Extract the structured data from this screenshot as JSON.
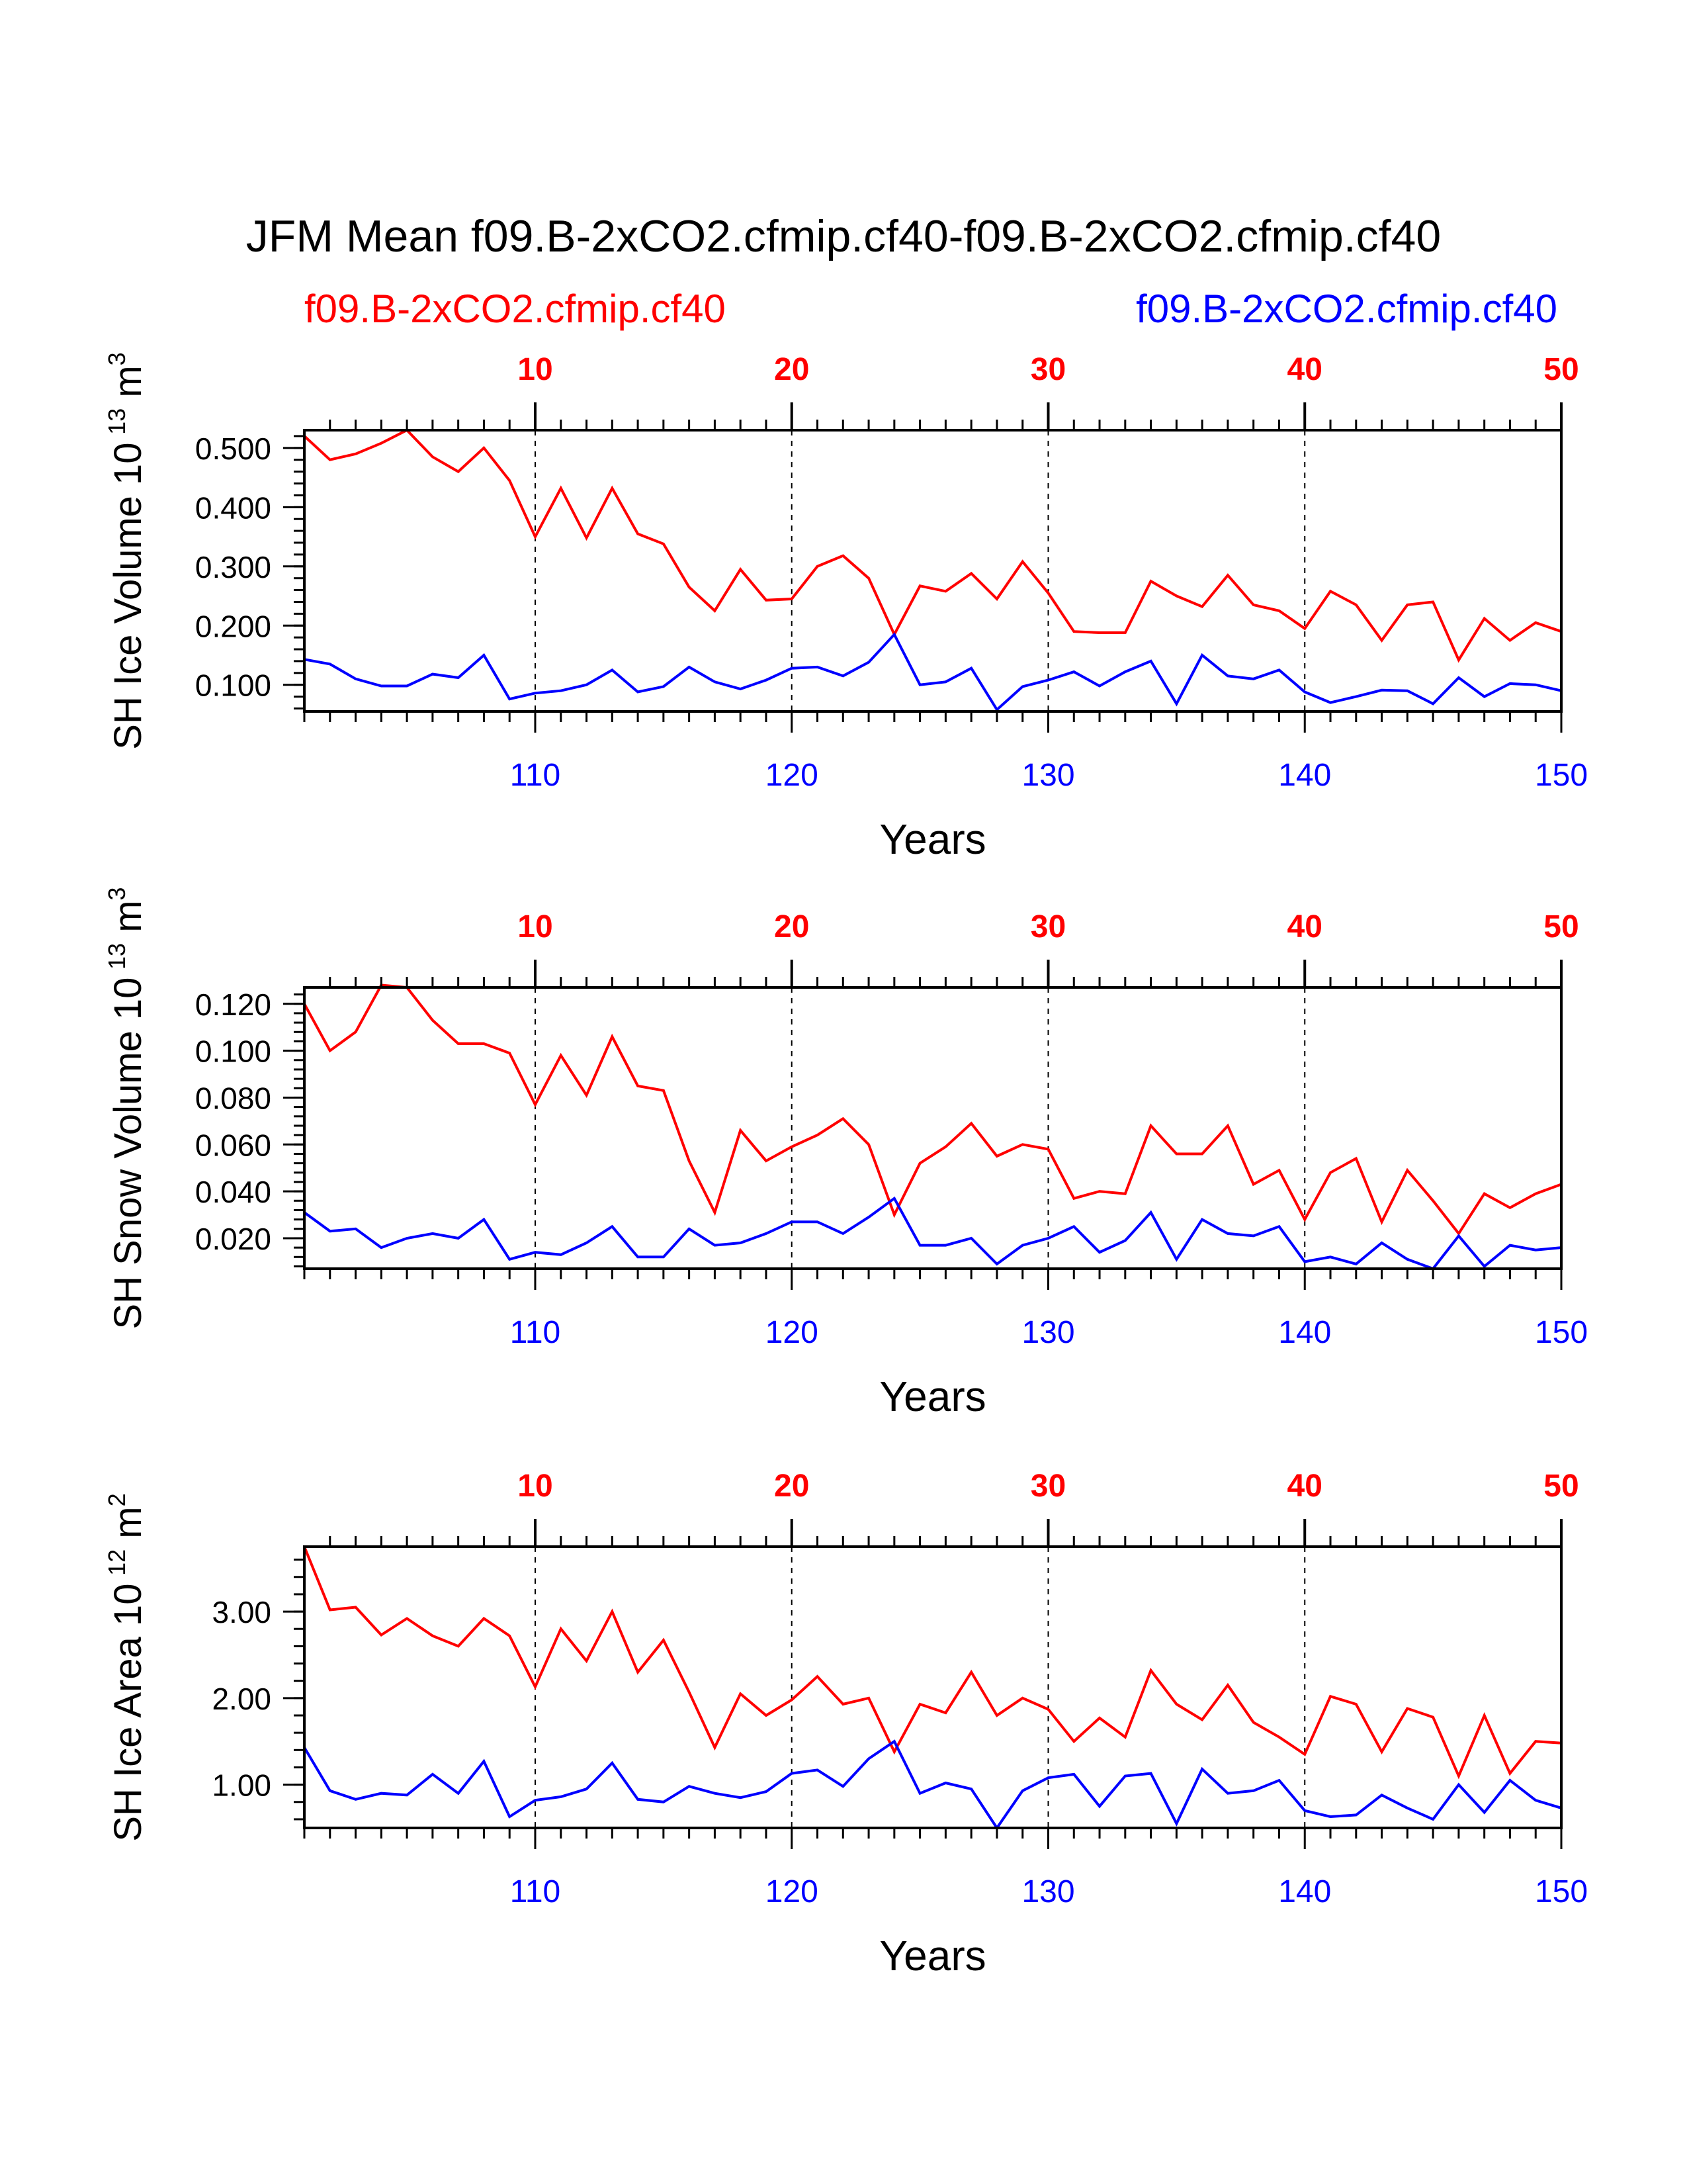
{
  "title": "JFM Mean f09.B-2xCO2.cfmip.cf40-f09.B-2xCO2.cfmip.cf40",
  "colors": {
    "case1": "#ff0000",
    "case2": "#0000ff",
    "axes": "#000000"
  },
  "chart_data": [
    {
      "type": "line",
      "ylabel": "SH Ice Volume 10^13 m^3",
      "ylabel_base": "SH Ice Volume 10",
      "ylabel_exp": "13",
      "ylabel_unit": "m",
      "ylabel_unit_exp": "3",
      "xlabel": "Years",
      "xlim_bottom": [
        101,
        150
      ],
      "xlim_top": [
        1,
        50
      ],
      "xticks_bottom": [
        "110",
        "120",
        "130",
        "140",
        "150"
      ],
      "xticks_top": [
        "10",
        "20",
        "30",
        "40",
        "50"
      ],
      "ylim": [
        0.055,
        0.53
      ],
      "yticks": [
        "0.100",
        "0.200",
        "0.300",
        "0.400",
        "0.500"
      ],
      "grid": "dashed vertical at top-axis major ticks",
      "series": [
        {
          "name": "f09.B-2xCO2.cfmip.cf40",
          "axis": "top",
          "color": "#ff0000",
          "values": [
            0.52,
            0.48,
            0.49,
            0.508,
            0.53,
            0.485,
            0.46,
            0.5,
            0.445,
            0.35,
            0.432,
            0.348,
            0.432,
            0.355,
            0.338,
            0.265,
            0.225,
            0.295,
            0.243,
            0.245,
            0.3,
            0.318,
            0.28,
            0.185,
            0.267,
            0.258,
            0.288,
            0.245,
            0.308,
            0.255,
            0.19,
            0.188,
            0.188,
            0.275,
            0.25,
            0.232,
            0.285,
            0.235,
            0.225,
            0.195,
            0.258,
            0.235,
            0.175,
            0.235,
            0.24,
            0.142,
            0.212,
            0.175,
            0.205,
            0.19
          ]
        },
        {
          "name": "f09.B-2xCO2.cfmip.cf40",
          "axis": "bottom",
          "color": "#0000ff",
          "values": [
            0.143,
            0.135,
            0.11,
            0.098,
            0.098,
            0.118,
            0.112,
            0.15,
            0.076,
            0.086,
            0.09,
            0.1,
            0.125,
            0.088,
            0.097,
            0.13,
            0.105,
            0.093,
            0.108,
            0.128,
            0.13,
            0.115,
            0.138,
            0.185,
            0.1,
            0.105,
            0.128,
            0.058,
            0.097,
            0.108,
            0.122,
            0.098,
            0.122,
            0.14,
            0.068,
            0.15,
            0.115,
            0.11,
            0.125,
            0.088,
            0.07,
            0.08,
            0.091,
            0.09,
            0.068,
            0.112,
            0.08,
            0.102,
            0.1,
            0.09
          ]
        }
      ]
    },
    {
      "type": "line",
      "ylabel": "SH Snow Volume 10^13 m^3",
      "ylabel_base": "SH Snow Volume 10",
      "ylabel_exp": "13",
      "ylabel_unit": "m",
      "ylabel_unit_exp": "3",
      "xlabel": "Years",
      "xlim_bottom": [
        101,
        150
      ],
      "xlim_top": [
        1,
        50
      ],
      "xticks_bottom": [
        "110",
        "120",
        "130",
        "140",
        "150"
      ],
      "xticks_top": [
        "10",
        "20",
        "30",
        "40",
        "50"
      ],
      "ylim": [
        0.007,
        0.127
      ],
      "yticks": [
        "0.020",
        "0.040",
        "0.060",
        "0.080",
        "0.100",
        "0.120"
      ],
      "grid": "dashed vertical at top-axis major ticks",
      "series": [
        {
          "name": "f09.B-2xCO2.cfmip.cf40",
          "axis": "top",
          "color": "#ff0000",
          "values": [
            0.12,
            0.1,
            0.108,
            0.128,
            0.127,
            0.113,
            0.103,
            0.103,
            0.099,
            0.077,
            0.098,
            0.081,
            0.106,
            0.085,
            0.083,
            0.053,
            0.031,
            0.066,
            0.053,
            0.059,
            0.064,
            0.071,
            0.06,
            0.03,
            0.052,
            0.059,
            0.069,
            0.055,
            0.06,
            0.058,
            0.037,
            0.04,
            0.039,
            0.068,
            0.056,
            0.056,
            0.068,
            0.043,
            0.049,
            0.028,
            0.048,
            0.054,
            0.027,
            0.049,
            0.036,
            0.022,
            0.039,
            0.033,
            0.039,
            0.043
          ]
        },
        {
          "name": "f09.B-2xCO2.cfmip.cf40",
          "axis": "bottom",
          "color": "#0000ff",
          "values": [
            0.031,
            0.023,
            0.024,
            0.016,
            0.02,
            0.022,
            0.02,
            0.028,
            0.011,
            0.014,
            0.013,
            0.018,
            0.025,
            0.012,
            0.012,
            0.024,
            0.017,
            0.018,
            0.022,
            0.027,
            0.027,
            0.022,
            0.029,
            0.037,
            0.017,
            0.017,
            0.02,
            0.009,
            0.017,
            0.02,
            0.025,
            0.014,
            0.019,
            0.031,
            0.011,
            0.028,
            0.022,
            0.021,
            0.025,
            0.01,
            0.012,
            0.009,
            0.018,
            0.011,
            0.007,
            0.021,
            0.008,
            0.017,
            0.015,
            0.016
          ]
        }
      ]
    },
    {
      "type": "line",
      "ylabel": "SH Ice Area 10^12 m^2",
      "ylabel_base": "SH Ice Area 10",
      "ylabel_exp": "12",
      "ylabel_unit": "m",
      "ylabel_unit_exp": "2",
      "xlabel": "Years",
      "xlim_bottom": [
        101,
        150
      ],
      "xlim_top": [
        1,
        50
      ],
      "xticks_bottom": [
        "110",
        "120",
        "130",
        "140",
        "150"
      ],
      "xticks_top": [
        "10",
        "20",
        "30",
        "40",
        "50"
      ],
      "ylim": [
        0.5,
        3.75
      ],
      "yticks": [
        "1.00",
        "2.00",
        "3.00"
      ],
      "grid": "dashed vertical at top-axis major ticks",
      "series": [
        {
          "name": "f09.B-2xCO2.cfmip.cf40",
          "axis": "top",
          "color": "#ff0000",
          "values": [
            3.75,
            3.02,
            3.05,
            2.73,
            2.92,
            2.72,
            2.6,
            2.92,
            2.72,
            2.13,
            2.8,
            2.43,
            3.0,
            2.3,
            2.67,
            2.07,
            1.43,
            2.05,
            1.8,
            1.98,
            2.25,
            1.93,
            2.0,
            1.38,
            1.93,
            1.83,
            2.3,
            1.8,
            2.0,
            1.87,
            1.5,
            1.77,
            1.55,
            2.32,
            1.93,
            1.75,
            2.15,
            1.72,
            1.55,
            1.35,
            2.02,
            1.93,
            1.38,
            1.88,
            1.78,
            1.1,
            1.8,
            1.13,
            1.5,
            1.48
          ]
        },
        {
          "name": "f09.B-2xCO2.cfmip.cf40",
          "axis": "bottom",
          "color": "#0000ff",
          "values": [
            1.43,
            0.93,
            0.83,
            0.9,
            0.88,
            1.12,
            0.9,
            1.27,
            0.63,
            0.82,
            0.86,
            0.95,
            1.25,
            0.83,
            0.8,
            0.98,
            0.9,
            0.85,
            0.92,
            1.13,
            1.17,
            0.98,
            1.3,
            1.5,
            0.9,
            1.02,
            0.95,
            0.5,
            0.93,
            1.08,
            1.12,
            0.75,
            1.1,
            1.13,
            0.55,
            1.18,
            0.9,
            0.93,
            1.05,
            0.7,
            0.63,
            0.65,
            0.88,
            0.73,
            0.6,
            1.0,
            0.68,
            1.05,
            0.82,
            0.73
          ]
        }
      ]
    }
  ]
}
